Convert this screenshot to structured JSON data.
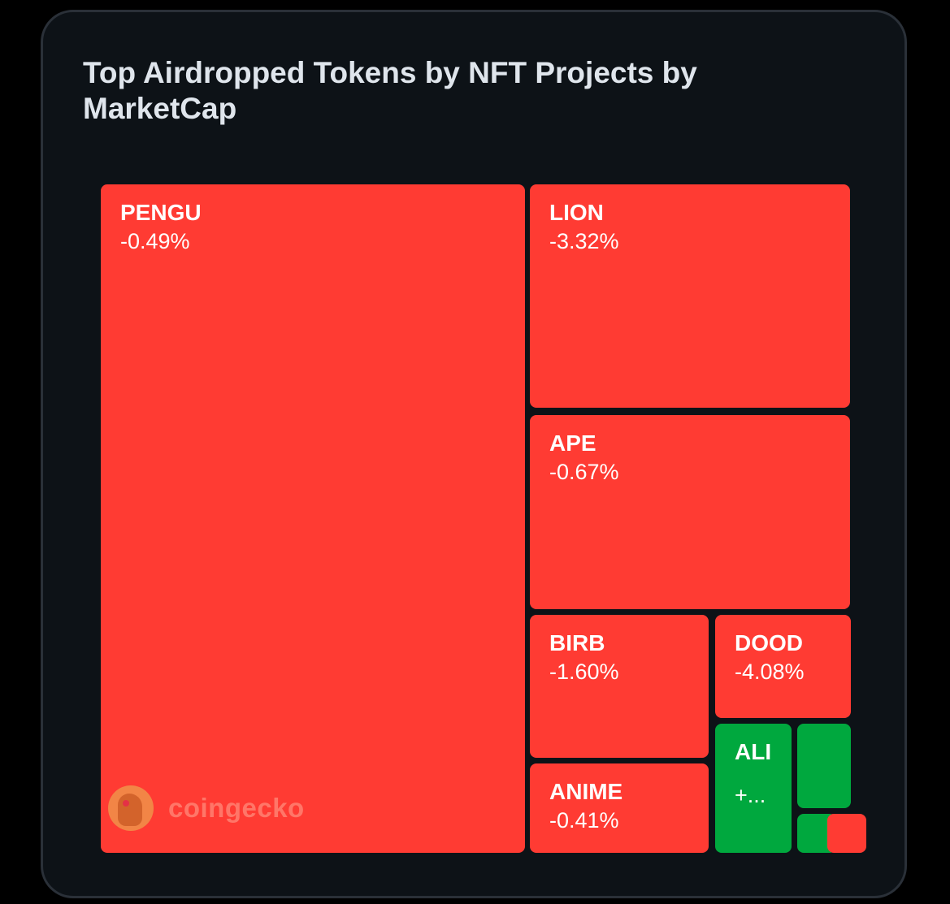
{
  "chart_data": {
    "type": "treemap",
    "title": "Top Airdropped Tokens by NFT Projects by MarketCap",
    "colors": {
      "negative": "#ff3b33",
      "positive": "#00a83e"
    },
    "tiles": [
      {
        "symbol": "PENGU",
        "change": "-0.49%",
        "direction": "down"
      },
      {
        "symbol": "LION",
        "change": "-3.32%",
        "direction": "down"
      },
      {
        "symbol": "APE",
        "change": "-0.67%",
        "direction": "down"
      },
      {
        "symbol": "BIRB",
        "change": "-1.60%",
        "direction": "down"
      },
      {
        "symbol": "DOOD",
        "change": "-4.08%",
        "direction": "down"
      },
      {
        "symbol": "ANIME",
        "change": "-0.41%",
        "direction": "down"
      },
      {
        "symbol": "ALI",
        "change": "+...",
        "direction": "up"
      },
      {
        "symbol": "",
        "change": "",
        "direction": "up"
      },
      {
        "symbol": "",
        "change": "",
        "direction": "up"
      },
      {
        "symbol": "",
        "change": "",
        "direction": "down"
      }
    ]
  },
  "watermark": {
    "text": "coingecko",
    "icon": "coingecko-gecko-icon"
  }
}
